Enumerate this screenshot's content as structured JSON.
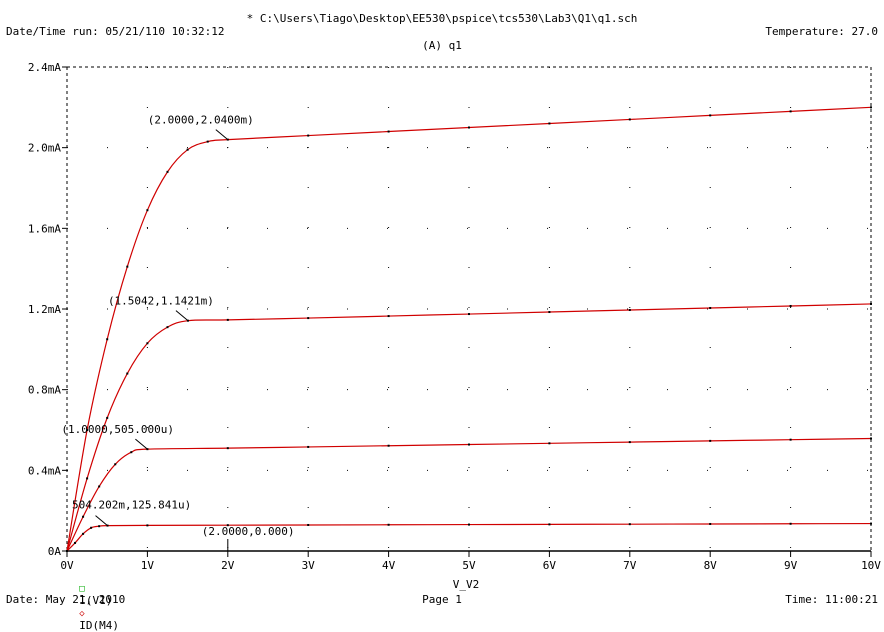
{
  "header": {
    "title": "* C:\\Users\\Tiago\\Desktop\\EE530\\pspice\\tcs530\\Lab3\\Q1\\q1.sch",
    "date_time_run": "Date/Time run: 05/21/110 10:32:12",
    "temperature": "Temperature: 27.0"
  },
  "footer": {
    "date": "Date: May 21, 2010",
    "page": "Page 1",
    "time": "Time: 11:00:21"
  },
  "legend": {
    "items": [
      {
        "symbol": "□",
        "label": "I(V1)",
        "color": "#00aa00"
      },
      {
        "symbol": "◇",
        "label": "ID(M4)",
        "color": "#cc0000"
      }
    ]
  },
  "colors": {
    "trace": "#d00000",
    "marker": "#000000",
    "axis": "#000000"
  },
  "chart_data": {
    "type": "line",
    "title": "(A) q1",
    "xlabel": "V_V2",
    "ylabel": "",
    "xlim": [
      0,
      10
    ],
    "ylim": [
      0,
      2.4
    ],
    "y_unit": "mA",
    "x_ticks": [
      "0V",
      "1V",
      "2V",
      "3V",
      "4V",
      "5V",
      "6V",
      "7V",
      "8V",
      "9V",
      "10V"
    ],
    "y_ticks": [
      "0A",
      "0.4mA",
      "0.8mA",
      "1.2mA",
      "1.6mA",
      "2.0mA",
      "2.4mA"
    ],
    "grid": "dotted",
    "series": [
      {
        "x": [
          0,
          0.1,
          0.2,
          0.3,
          0.4,
          0.504,
          1,
          2,
          3,
          4,
          5,
          6,
          7,
          8,
          9,
          10
        ],
        "values": [
          0,
          0.04,
          0.085,
          0.115,
          0.123,
          0.126,
          0.127,
          0.128,
          0.129,
          0.13,
          0.131,
          0.132,
          0.133,
          0.134,
          0.135,
          0.136
        ]
      },
      {
        "x": [
          0,
          0.2,
          0.4,
          0.6,
          0.8,
          1.0,
          2,
          3,
          4,
          5,
          6,
          7,
          8,
          9,
          10
        ],
        "values": [
          0,
          0.17,
          0.32,
          0.43,
          0.49,
          0.505,
          0.51,
          0.516,
          0.522,
          0.528,
          0.534,
          0.54,
          0.546,
          0.552,
          0.558
        ]
      },
      {
        "x": [
          0,
          0.25,
          0.5,
          0.75,
          1.0,
          1.25,
          1.5042,
          2,
          3,
          4,
          5,
          6,
          7,
          8,
          9,
          10
        ],
        "values": [
          0,
          0.36,
          0.66,
          0.88,
          1.03,
          1.11,
          1.1421,
          1.146,
          1.155,
          1.165,
          1.175,
          1.185,
          1.195,
          1.205,
          1.215,
          1.225
        ]
      },
      {
        "x": [
          0,
          0.25,
          0.5,
          0.75,
          1.0,
          1.25,
          1.5,
          1.75,
          2.0,
          3,
          4,
          5,
          6,
          7,
          8,
          9,
          10
        ],
        "values": [
          0,
          0.6,
          1.05,
          1.41,
          1.69,
          1.88,
          1.99,
          2.03,
          2.04,
          2.06,
          2.08,
          2.1,
          2.12,
          2.14,
          2.16,
          2.18,
          2.2
        ]
      }
    ],
    "annotations": [
      {
        "text": "(2.0000,2.0400m)",
        "x": 2.0,
        "y": 2.04
      },
      {
        "text": "(1.5042,1.1421m)",
        "x": 1.5042,
        "y": 1.1421
      },
      {
        "text": "(1.0000,505.000u)",
        "x": 1.0,
        "y": 0.505
      },
      {
        "text": "504.202m,125.841u)",
        "x": 0.504,
        "y": 0.126
      },
      {
        "text": "(2.0000,0.000)",
        "x": 2.0,
        "y": 0.0
      }
    ]
  }
}
